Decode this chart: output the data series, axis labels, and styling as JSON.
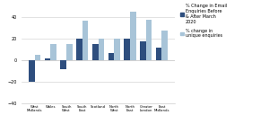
{
  "categories": [
    "West Midlands",
    "Wales",
    "South West",
    "South East",
    "Scotland",
    "North West",
    "North East",
    "Greater London",
    "East Midlands"
  ],
  "email_change": [
    -20,
    2,
    -8,
    20,
    15,
    7,
    20,
    18,
    12
  ],
  "unique_change": [
    5,
    15,
    15,
    37,
    20,
    20,
    45,
    38,
    28
  ],
  "bar_color_email": "#2E4E7E",
  "bar_color_unique": "#A8C4D8",
  "background_color": "#FFFFFF",
  "legend_label_email": "% Change in Email\nEnquiries Before\n& After March\n2020",
  "legend_label_unique": "% change in\nunique enquiries",
  "ylim": [
    -40,
    50
  ],
  "yticks": [
    -40,
    -20,
    0,
    20,
    40
  ],
  "figsize": [
    3.0,
    1.48
  ],
  "dpi": 100
}
